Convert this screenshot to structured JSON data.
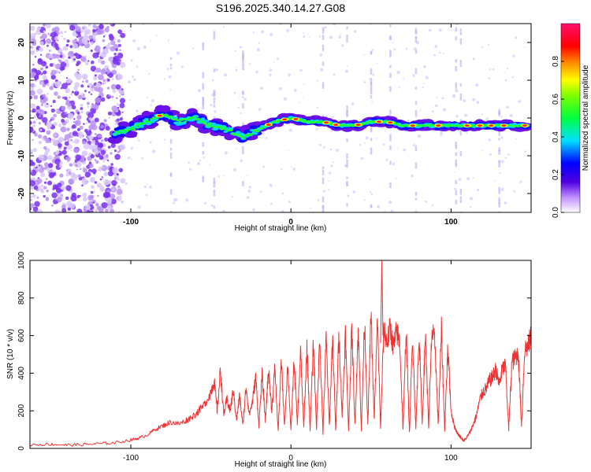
{
  "title": "S196.2025.340.14.27.G08",
  "chart_data": [
    {
      "type": "heatmap",
      "name": "spectrogram",
      "xlabel": "Height of straight line (km)",
      "ylabel": "Frequency (Hz)",
      "xlim": [
        -163,
        150
      ],
      "ylim": [
        -25,
        25
      ],
      "xticks": [
        "-100",
        "0",
        "100"
      ],
      "xtick_values": [
        -100,
        0,
        100
      ],
      "yticks": [
        "-20",
        "-10",
        "0",
        "10",
        "20"
      ],
      "ytick_values": [
        -20,
        -10,
        0,
        10,
        20
      ],
      "ridge": {
        "x": [
          -110,
          -100,
          -90,
          -80,
          -70,
          -60,
          -50,
          -40,
          -30,
          -20,
          -10,
          0,
          10,
          20,
          30,
          40,
          50,
          60,
          70,
          80,
          90,
          100,
          110,
          120,
          130,
          140,
          148
        ],
        "y": [
          -4,
          -3,
          -1,
          1,
          -1,
          0,
          -2,
          -3,
          -5,
          -3,
          -1,
          0,
          -1,
          -1,
          -2,
          -2,
          -1,
          -1,
          -2,
          -2,
          -2,
          -2,
          -2,
          -2,
          -2,
          -2,
          -2
        ]
      },
      "colorbar": {
        "label": "Normalized spectral amplitude",
        "ticks": [
          "0.0",
          "0.2",
          "0.4",
          "0.6",
          "0.8"
        ],
        "tick_values": [
          0.0,
          0.2,
          0.4,
          0.6,
          0.8
        ],
        "range": [
          0,
          1
        ],
        "colors": [
          "#c8c8ff",
          "#5000e0",
          "#0000ff",
          "#00e0ff",
          "#00ff00",
          "#ffff00",
          "#ff8000",
          "#ff0000",
          "#ff1070"
        ]
      }
    },
    {
      "type": "line",
      "name": "snr",
      "xlabel": "Height of straight line (km)",
      "ylabel": "SNR (10 * v/v)",
      "xlim": [
        -163,
        150
      ],
      "ylim": [
        0,
        1000
      ],
      "xticks": [
        "-100",
        "0",
        "100"
      ],
      "xtick_values": [
        -100,
        0,
        100
      ],
      "yticks": [
        "0",
        "200",
        "400",
        "600",
        "800",
        "1000"
      ],
      "ytick_values": [
        0,
        200,
        400,
        600,
        800,
        1000
      ],
      "color": "#ee3333",
      "series": [
        {
          "name": "SNR",
          "x": [
            -163,
            -150,
            -140,
            -130,
            -120,
            -110,
            -100,
            -95,
            -90,
            -85,
            -80,
            -75,
            -70,
            -65,
            -60,
            -55,
            -50,
            -48,
            -46,
            -44,
            -42,
            -40,
            -38,
            -36,
            -34,
            -32,
            -30,
            -28,
            -26,
            -24,
            -22,
            -20,
            -18,
            -16,
            -14,
            -12,
            -10,
            -8,
            -6,
            -4,
            -2,
            0,
            2,
            4,
            6,
            8,
            10,
            12,
            14,
            16,
            18,
            20,
            22,
            24,
            26,
            28,
            30,
            32,
            34,
            36,
            38,
            40,
            42,
            44,
            46,
            48,
            50,
            52,
            54,
            56,
            58,
            60,
            62,
            64,
            66,
            68,
            70,
            72,
            74,
            76,
            78,
            80,
            82,
            84,
            86,
            88,
            90,
            92,
            94,
            96,
            98,
            100,
            102,
            104,
            106,
            108,
            110,
            112,
            114,
            116,
            118,
            120,
            122,
            124,
            126,
            128,
            130,
            132,
            134,
            136,
            138,
            140,
            142,
            144,
            146,
            148,
            150
          ],
          "y": [
            20,
            22,
            18,
            20,
            25,
            30,
            45,
            55,
            70,
            100,
            120,
            140,
            130,
            150,
            180,
            220,
            300,
            360,
            200,
            420,
            180,
            260,
            200,
            310,
            150,
            280,
            120,
            330,
            180,
            250,
            380,
            120,
            390,
            150,
            420,
            200,
            430,
            90,
            460,
            120,
            450,
            90,
            470,
            130,
            520,
            110,
            540,
            100,
            560,
            110,
            600,
            80,
            590,
            120,
            600,
            90,
            620,
            170,
            610,
            90,
            640,
            120,
            640,
            100,
            680,
            120,
            710,
            150,
            680,
            110,
            640,
            560,
            640,
            540,
            620,
            560,
            100,
            640,
            80,
            600,
            100,
            620,
            130,
            610,
            110,
            620,
            560,
            120,
            630,
            100,
            540,
            200,
            120,
            80,
            60,
            40,
            60,
            90,
            130,
            180,
            260,
            300,
            320,
            360,
            380,
            420,
            340,
            420,
            440,
            100,
            460,
            480,
            510,
            120,
            530,
            540,
            600
          ]
        }
      ]
    }
  ]
}
